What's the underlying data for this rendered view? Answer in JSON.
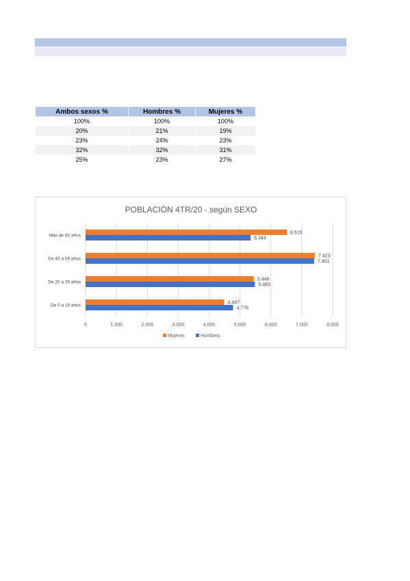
{
  "table": {
    "headers": [
      "Ambos sexos %",
      "Hombres %",
      "Mujeres %"
    ],
    "rows": [
      [
        "100%",
        "100%",
        "100%"
      ],
      [
        "20%",
        "21%",
        "19%"
      ],
      [
        "23%",
        "24%",
        "23%"
      ],
      [
        "32%",
        "32%",
        "31%"
      ],
      [
        "25%",
        "23%",
        "27%"
      ]
    ]
  },
  "chart_data": {
    "type": "bar",
    "orientation": "horizontal",
    "title": "POBLACIÓN 4TR/20 - según SEXO",
    "categories": [
      "Más de 60 años",
      "De 40 a 59 años",
      "De 20 a 39 años",
      "De 0 a 19 años"
    ],
    "series": [
      {
        "name": "Mujeres",
        "color": "#ed7d31",
        "values": [
          6515,
          7423,
          5446,
          4487
        ],
        "labels": [
          "6.515",
          "7.423",
          "5.446",
          "4.487"
        ]
      },
      {
        "name": "Hombres",
        "color": "#4472c4",
        "values": [
          5344,
          7401,
          5483,
          4776
        ],
        "labels": [
          "5.344",
          "7.401",
          "5.483",
          "4.776"
        ]
      }
    ],
    "xlim": [
      0,
      8000
    ],
    "xticks": [
      "0",
      "1.000",
      "2.000",
      "3.000",
      "4.000",
      "5.000",
      "6.000",
      "7.000",
      "8.000"
    ],
    "grid": true,
    "legend_position": "bottom"
  }
}
